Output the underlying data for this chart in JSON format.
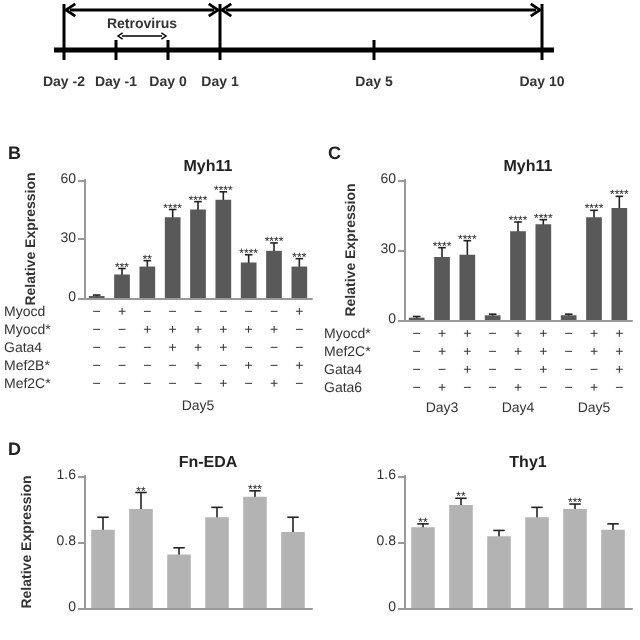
{
  "chart_data": [
    {
      "type": "other",
      "annotations": [
        "Day -2",
        "Day -1",
        "Day 0",
        "Day 1",
        "Day 5",
        "Day 10",
        "Retrovirus"
      ]
    },
    {
      "type": "bar",
      "title": "Myh11",
      "ylabel": "Relative Expression",
      "xlabel": "Day5",
      "color": "#595959",
      "categories": [
        "−\n−\n−\n−\n−",
        "+\n−\n−\n−\n−",
        "−\n+\n−\n−\n−",
        "−\n+\n+\n−\n−",
        "−\n+\n+\n+\n−",
        "−\n+\n+\n−\n+",
        "−\n+\n−\n+\n−",
        "−\n+\n−\n−\n+",
        "+\n−\n−\n+\n−"
      ],
      "values": [
        1,
        12,
        16,
        41,
        45,
        50,
        18,
        24,
        16
      ],
      "errors": [
        0.5,
        3,
        3,
        4,
        4,
        4,
        4,
        4,
        4
      ],
      "value_labels": [
        null,
        "***",
        "**",
        "****",
        "****",
        "****",
        "****",
        "****",
        "***"
      ],
      "ylim": [
        0,
        60
      ],
      "yticks": [
        0,
        30,
        60
      ],
      "annotations": [
        "B",
        "Myocd",
        "Myocd*",
        "Gata4",
        "Mef2B*",
        "Mef2C*"
      ]
    },
    {
      "type": "bar",
      "title": "Myh11",
      "ylabel": "Relative Expression",
      "color": "#595959",
      "categories": [
        "−\n−\n−\n−",
        "+\n+\n−\n+",
        "+\n+\n+\n−",
        "−\n−\n−\n−",
        "+\n+\n−\n+",
        "+\n+\n+\n−",
        "−\n−\n−\n−",
        "+\n+\n−\n+",
        "+\n+\n+\n−"
      ],
      "values": [
        1,
        27,
        28,
        2,
        38,
        41,
        2,
        44,
        48
      ],
      "errors": [
        0.5,
        4,
        6,
        0.5,
        4,
        2,
        0.5,
        3,
        5
      ],
      "value_labels": [
        null,
        "****",
        "****",
        null,
        "****",
        "****",
        null,
        "****",
        "****"
      ],
      "ylim": [
        0,
        60
      ],
      "yticks": [
        0,
        30,
        60
      ],
      "annotations": [
        "C",
        "Myocd*",
        "Mef2C*",
        "Gata4",
        "Gata6",
        "Day3",
        "Day4",
        "Day5"
      ]
    },
    {
      "type": "bar",
      "title": "Fn-EDA",
      "ylabel": "Relative Expression",
      "color": "#b3b3b3",
      "categories": [
        null,
        null,
        null,
        null,
        null,
        null
      ],
      "values": [
        0.95,
        1.2,
        0.65,
        1.1,
        1.35,
        0.92
      ],
      "errors": [
        0.15,
        0.2,
        0.08,
        0.12,
        0.07,
        0.18
      ],
      "value_labels": [
        null,
        "**",
        null,
        null,
        "***",
        null
      ],
      "ylim": [
        0,
        1.6
      ],
      "yticks": [
        0,
        0.8,
        1.6
      ],
      "annotations": [
        "D"
      ]
    },
    {
      "type": "bar",
      "title": "Thy1",
      "color": "#b3b3b3",
      "categories": [
        null,
        null,
        null,
        null,
        null,
        null
      ],
      "values": [
        0.98,
        1.25,
        0.87,
        1.1,
        1.2,
        0.95
      ],
      "errors": [
        0.04,
        0.08,
        0.07,
        0.12,
        0.06,
        0.07
      ],
      "value_labels": [
        "**",
        "**",
        null,
        null,
        "***",
        null
      ],
      "ylim": [
        0,
        1.6
      ],
      "yticks": [
        0,
        0.8,
        1.6
      ]
    }
  ]
}
